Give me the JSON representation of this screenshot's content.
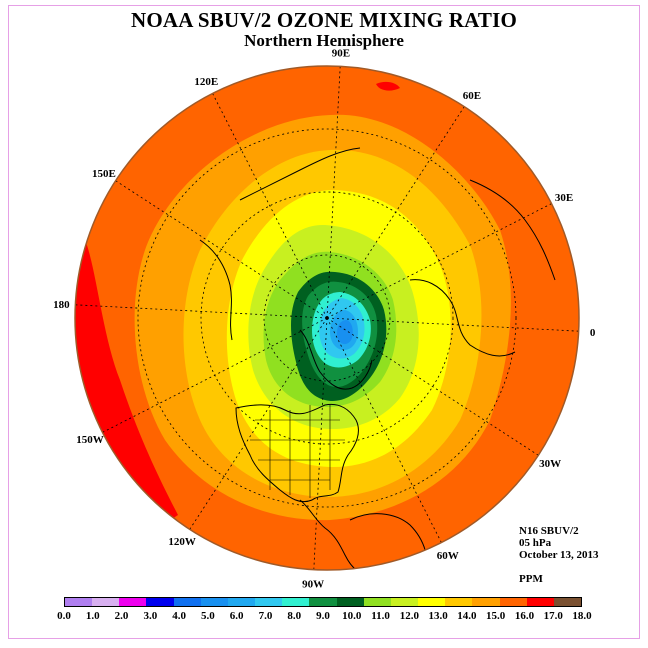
{
  "title": "NOAA SBUV/2 OZONE MIXING RATIO",
  "subtitle": "Northern Hemisphere",
  "info": {
    "satellite": "N16 SBUV/2",
    "level": "05 hPa",
    "date": "October 13, 2013",
    "units": "PPM"
  },
  "longitude_labels": [
    "90E",
    "60E",
    "30E",
    "0",
    "30W",
    "60W",
    "90W",
    "120W",
    "150W",
    "180",
    "150E",
    "120E"
  ],
  "colorbar": {
    "labels": [
      "0.0",
      "1.0",
      "2.0",
      "3.0",
      "4.0",
      "5.0",
      "6.0",
      "7.0",
      "8.0",
      "9.0",
      "10.0",
      "11.0",
      "12.0",
      "13.0",
      "14.0",
      "15.0",
      "16.0",
      "17.0",
      "18.0"
    ],
    "colors": [
      "#b07ff0",
      "#d8b0f0",
      "#ee00ee",
      "#0000ee",
      "#1070f0",
      "#1890f0",
      "#20a8f0",
      "#30c8f0",
      "#30f0d0",
      "#109040",
      "#006020",
      "#90e020",
      "#c8f020",
      "#ffff00",
      "#ffc800",
      "#ffa000",
      "#ff6400",
      "#ff0000",
      "#7a5030"
    ]
  },
  "colors": {
    "outer": "#ff6400",
    "land": "#000000",
    "frame": "#e6a0e6"
  }
}
